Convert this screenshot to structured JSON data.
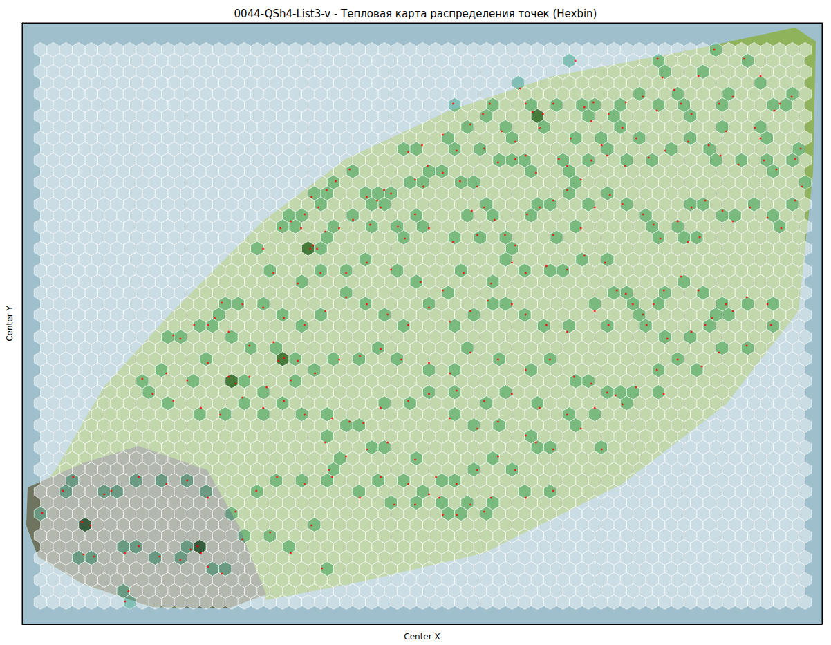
{
  "chart_data": {
    "type": "hexbin",
    "title": "0044-QSh4-List3-v - Тепловая карта распределения точек (Hexbin)",
    "x_label": "Center X",
    "y_label": "Center Y",
    "xlim": [
      31,
      1189
    ],
    "ylim": [
      903,
      33
    ],
    "tick_labels": false,
    "grid": false,
    "color": "#ff0000",
    "marker": "circle",
    "points": [
      [
        832,
        88
      ],
      [
        951,
        85
      ],
      [
        1033,
        72
      ],
      [
        1076,
        85
      ],
      [
        1100,
        110
      ],
      [
        752,
        128
      ],
      [
        770,
        162
      ],
      [
        760,
        150
      ],
      [
        708,
        150
      ],
      [
        698,
        165
      ],
      [
        655,
        150
      ],
      [
        680,
        180
      ],
      [
        725,
        190
      ],
      [
        745,
        205
      ],
      [
        785,
        165
      ],
      [
        800,
        150
      ],
      [
        845,
        155
      ],
      [
        858,
        148
      ],
      [
        880,
        165
      ],
      [
        905,
        148
      ],
      [
        930,
        140
      ],
      [
        950,
        160
      ],
      [
        985,
        150
      ],
      [
        1000,
        165
      ],
      [
        1040,
        150
      ],
      [
        1060,
        140
      ],
      [
        1120,
        160
      ],
      [
        1128,
        150
      ],
      [
        1145,
        140
      ],
      [
        1010,
        110
      ],
      [
        975,
        130
      ],
      [
        958,
        112
      ],
      [
        1050,
        190
      ],
      [
        1092,
        185
      ],
      [
        1100,
        200
      ],
      [
        855,
        175
      ],
      [
        900,
        185
      ],
      [
        920,
        200
      ],
      [
        870,
        210
      ],
      [
        825,
        200
      ],
      [
        780,
        185
      ],
      [
        640,
        195
      ],
      [
        610,
        210
      ],
      [
        590,
        220
      ],
      [
        618,
        240
      ],
      [
        660,
        218
      ],
      [
        700,
        215
      ],
      [
        720,
        235
      ],
      [
        745,
        230
      ],
      [
        760,
        225
      ],
      [
        775,
        250
      ],
      [
        808,
        230
      ],
      [
        820,
        240
      ],
      [
        855,
        232
      ],
      [
        878,
        225
      ],
      [
        904,
        240
      ],
      [
        938,
        228
      ],
      [
        962,
        218
      ],
      [
        995,
        205
      ],
      [
        1025,
        210
      ],
      [
        1042,
        225
      ],
      [
        1068,
        238
      ],
      [
        1105,
        232
      ],
      [
        1123,
        245
      ],
      [
        1150,
        230
      ],
      [
        1158,
        215
      ],
      [
        555,
        275
      ],
      [
        565,
        280
      ],
      [
        545,
        290
      ],
      [
        550,
        300
      ],
      [
        530,
        285
      ],
      [
        505,
        245
      ],
      [
        485,
        262
      ],
      [
        472,
        275
      ],
      [
        450,
        285
      ],
      [
        460,
        300
      ],
      [
        440,
        310
      ],
      [
        420,
        320
      ],
      [
        405,
        330
      ],
      [
        435,
        330
      ],
      [
        470,
        335
      ],
      [
        490,
        330
      ],
      [
        510,
        318
      ],
      [
        535,
        325
      ],
      [
        575,
        328
      ],
      [
        585,
        345
      ],
      [
        600,
        260
      ],
      [
        612,
        270
      ],
      [
        640,
        250
      ],
      [
        665,
        262
      ],
      [
        690,
        270
      ],
      [
        700,
        300
      ],
      [
        682,
        305
      ],
      [
        715,
        318
      ],
      [
        730,
        340
      ],
      [
        745,
        355
      ],
      [
        762,
        310
      ],
      [
        780,
        300
      ],
      [
        800,
        290
      ],
      [
        820,
        275
      ],
      [
        840,
        260
      ],
      [
        860,
        300
      ],
      [
        882,
        282
      ],
      [
        900,
        295
      ],
      [
        930,
        310
      ],
      [
        945,
        325
      ],
      [
        955,
        345
      ],
      [
        980,
        320
      ],
      [
        1000,
        300
      ],
      [
        1020,
        290
      ],
      [
        1045,
        305
      ],
      [
        1060,
        320
      ],
      [
        1085,
        300
      ],
      [
        1110,
        315
      ],
      [
        1130,
        330
      ],
      [
        1150,
        290
      ],
      [
        1160,
        270
      ],
      [
        995,
        350
      ],
      [
        1012,
        343
      ],
      [
        840,
        330
      ],
      [
        800,
        340
      ],
      [
        690,
        340
      ],
      [
        655,
        350
      ],
      [
        620,
        330
      ],
      [
        600,
        310
      ],
      [
        452,
        355
      ],
      [
        448,
        360
      ],
      [
        458,
        360
      ],
      [
        380,
        360
      ],
      [
        395,
        395
      ],
      [
        430,
        410
      ],
      [
        463,
        395
      ],
      [
        500,
        395
      ],
      [
        530,
        380
      ],
      [
        565,
        390
      ],
      [
        608,
        408
      ],
      [
        640,
        420
      ],
      [
        670,
        395
      ],
      [
        710,
        410
      ],
      [
        740,
        380
      ],
      [
        760,
        395
      ],
      [
        790,
        385
      ],
      [
        820,
        390
      ],
      [
        845,
        370
      ],
      [
        875,
        380
      ],
      [
        892,
        420
      ],
      [
        905,
        425
      ],
      [
        915,
        440
      ],
      [
        930,
        455
      ],
      [
        945,
        440
      ],
      [
        960,
        420
      ],
      [
        985,
        400
      ],
      [
        1010,
        420
      ],
      [
        1020,
        470
      ],
      [
        1030,
        460
      ],
      [
        1050,
        440
      ],
      [
        1060,
        450
      ],
      [
        1080,
        430
      ],
      [
        1110,
        440
      ],
      [
        1115,
        470
      ],
      [
        1000,
        480
      ],
      [
        965,
        490
      ],
      [
        935,
        470
      ],
      [
        880,
        470
      ],
      [
        860,
        450
      ],
      [
        820,
        480
      ],
      [
        790,
        470
      ],
      [
        760,
        455
      ],
      [
        740,
        440
      ],
      [
        705,
        435
      ],
      [
        680,
        450
      ],
      [
        650,
        465
      ],
      [
        620,
        445
      ],
      [
        590,
        470
      ],
      [
        560,
        455
      ],
      [
        530,
        440
      ],
      [
        500,
        430
      ],
      [
        470,
        450
      ],
      [
        440,
        470
      ],
      [
        410,
        460
      ],
      [
        380,
        445
      ],
      [
        350,
        440
      ],
      [
        320,
        438
      ],
      [
        310,
        460
      ],
      [
        300,
        470
      ],
      [
        280,
        470
      ],
      [
        260,
        490
      ],
      [
        250,
        485
      ],
      [
        330,
        480
      ],
      [
        360,
        500
      ],
      [
        395,
        495
      ],
      [
        410,
        518
      ],
      [
        430,
        522
      ],
      [
        402,
        522
      ],
      [
        205,
        548
      ],
      [
        240,
        540
      ],
      [
        270,
        550
      ],
      [
        300,
        525
      ],
      [
        330,
        545
      ],
      [
        340,
        555
      ],
      [
        360,
        545
      ],
      [
        385,
        560
      ],
      [
        420,
        550
      ],
      [
        455,
        540
      ],
      [
        490,
        520
      ],
      [
        520,
        515
      ],
      [
        550,
        505
      ],
      [
        580,
        520
      ],
      [
        620,
        525
      ],
      [
        650,
        540
      ],
      [
        680,
        510
      ],
      [
        720,
        520
      ],
      [
        760,
        535
      ],
      [
        795,
        520
      ],
      [
        830,
        545
      ],
      [
        855,
        555
      ],
      [
        878,
        568
      ],
      [
        890,
        572
      ],
      [
        920,
        560
      ],
      [
        950,
        535
      ],
      [
        980,
        520
      ],
      [
        1015,
        530
      ],
      [
        1040,
        510
      ],
      [
        1080,
        500
      ],
      [
        220,
        570
      ],
      [
        250,
        580
      ],
      [
        290,
        590
      ],
      [
        318,
        600
      ],
      [
        350,
        575
      ],
      [
        380,
        590
      ],
      [
        410,
        580
      ],
      [
        440,
        600
      ],
      [
        480,
        605
      ],
      [
        505,
        610
      ],
      [
        525,
        612
      ],
      [
        550,
        590
      ],
      [
        590,
        580
      ],
      [
        620,
        570
      ],
      [
        660,
        565
      ],
      [
        700,
        580
      ],
      [
        740,
        570
      ],
      [
        780,
        590
      ],
      [
        820,
        600
      ],
      [
        860,
        590
      ],
      [
        900,
        585
      ],
      [
        960,
        570
      ],
      [
        720,
        610
      ],
      [
        690,
        620
      ],
      [
        650,
        605
      ],
      [
        470,
        640
      ],
      [
        500,
        660
      ],
      [
        530,
        650
      ],
      [
        560,
        640
      ],
      [
        600,
        665
      ],
      [
        630,
        690
      ],
      [
        660,
        700
      ],
      [
        690,
        680
      ],
      [
        720,
        660
      ],
      [
        745,
        680
      ],
      [
        760,
        630
      ],
      [
        775,
        640
      ],
      [
        800,
        650
      ],
      [
        840,
        620
      ],
      [
        870,
        650
      ],
      [
        550,
        690
      ],
      [
        590,
        700
      ],
      [
        620,
        715
      ],
      [
        635,
        720
      ],
      [
        640,
        745
      ],
      [
        600,
        730
      ],
      [
        570,
        730
      ],
      [
        520,
        720
      ],
      [
        480,
        690
      ],
      [
        475,
        680
      ],
      [
        440,
        700
      ],
      [
        400,
        690
      ],
      [
        370,
        710
      ],
      [
        340,
        740
      ],
      [
        300,
        720
      ],
      [
        270,
        695
      ],
      [
        240,
        700
      ],
      [
        200,
        690
      ],
      [
        160,
        710
      ],
      [
        150,
        715
      ],
      [
        130,
        760
      ],
      [
        118,
        755
      ],
      [
        105,
        690
      ],
      [
        90,
        710
      ],
      [
        60,
        742
      ],
      [
        120,
        802
      ],
      [
        135,
        805
      ],
      [
        180,
        800
      ],
      [
        200,
        790
      ],
      [
        230,
        805
      ],
      [
        260,
        810
      ],
      [
        275,
        795
      ],
      [
        285,
        790
      ],
      [
        290,
        800
      ],
      [
        300,
        820
      ],
      [
        320,
        830
      ],
      [
        350,
        780
      ],
      [
        390,
        770
      ],
      [
        420,
        800
      ],
      [
        450,
        760
      ],
      [
        465,
        822
      ],
      [
        185,
        855
      ],
      [
        180,
        870
      ],
      [
        710,
        720
      ],
      [
        700,
        740
      ],
      [
        680,
        730
      ],
      [
        760,
        720
      ],
      [
        800,
        710
      ],
      [
        660,
        745
      ]
    ]
  }
}
